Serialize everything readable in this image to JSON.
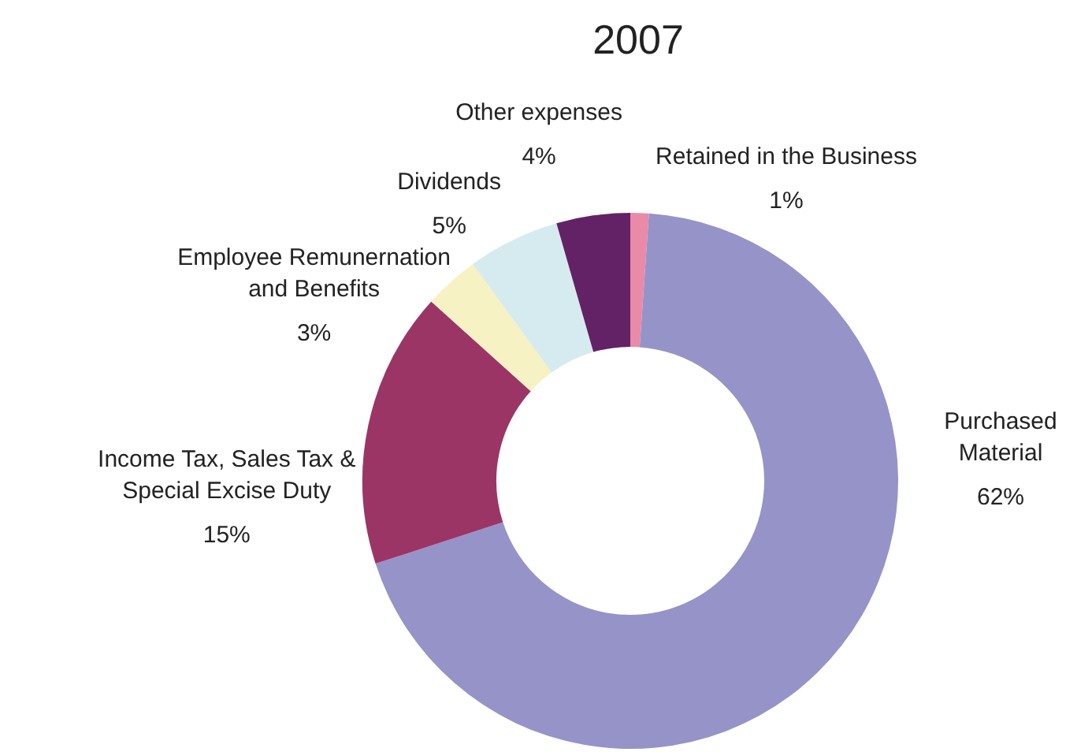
{
  "chart_data": {
    "type": "donut",
    "title": "2007",
    "categories": [
      "Retained in the Business",
      "Purchased Material",
      "Income Tax, Sales Tax & Special Excise Duty",
      "Employee Remunernation and Benefits",
      "Dividends",
      "Other expenses"
    ],
    "values": [
      1,
      62,
      15,
      3,
      5,
      4
    ],
    "value_labels": [
      "1%",
      "62%",
      "15%",
      "3%",
      "5%",
      "4%"
    ],
    "colors": [
      "#e98aa8",
      "#9693c8",
      "#9b3566",
      "#f7f2c4",
      "#d6ebf0",
      "#632266"
    ],
    "legend": false
  }
}
